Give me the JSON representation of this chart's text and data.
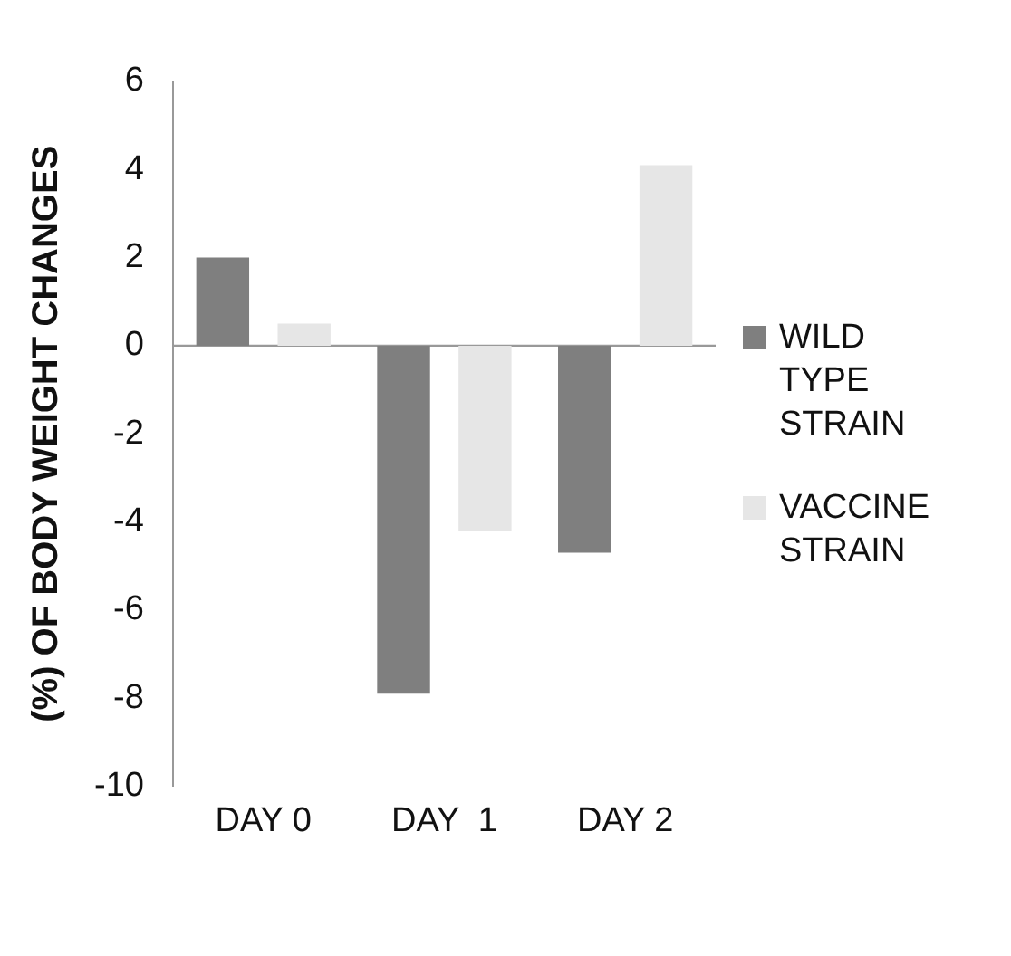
{
  "chart_data": {
    "type": "bar",
    "ylabel": "(%) OF BODY WEIGHT CHANGES",
    "categories": [
      "DAY 0",
      "DAY  1",
      "DAY 2"
    ],
    "series": [
      {
        "name": "WILD TYPE STRAIN",
        "color": "#7f7f7f",
        "values": [
          2,
          -7.9,
          -4.7
        ]
      },
      {
        "name": "VACCINE STRAIN",
        "color": "#e6e6e6",
        "values": [
          0.5,
          -4.2,
          4.1
        ]
      }
    ],
    "ref_lines": [
      {
        "axis": "y",
        "value": 0,
        "color": "#999999"
      }
    ],
    "ylim": [
      -10,
      6
    ],
    "yticks": [
      -10,
      -8,
      -6,
      -4,
      -2,
      0,
      2,
      4,
      6
    ],
    "grid": false,
    "legend": "right"
  }
}
